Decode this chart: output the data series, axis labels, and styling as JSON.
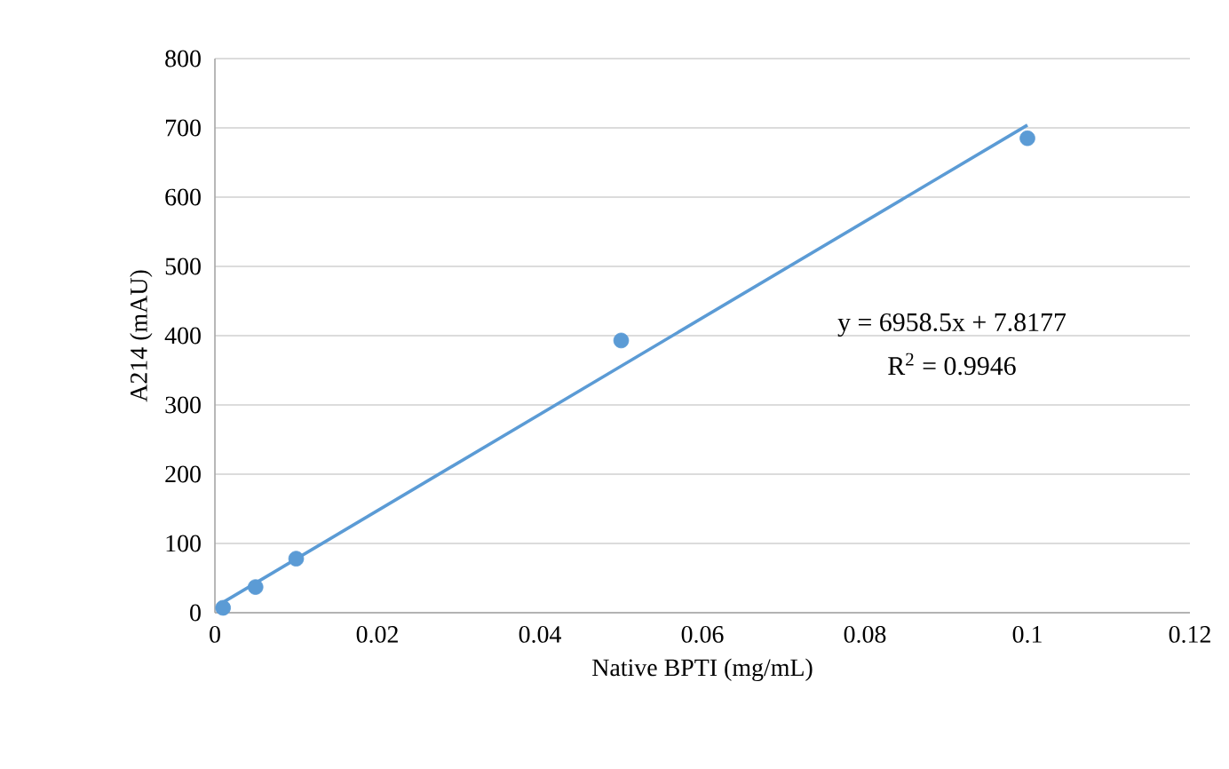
{
  "chart_data": {
    "type": "scatter",
    "xlabel": "Native BPTI (mg/mL)",
    "ylabel": "A214 (mAU)",
    "series": [
      {
        "color": "#5b9bd5",
        "x": [
          0.001,
          0.005,
          0.01,
          0.05,
          0.1
        ],
        "values": [
          7,
          37,
          78,
          393,
          685
        ]
      },
      {
        "type": "line",
        "color": "#5b9bd5",
        "x": [
          0.001,
          0.1
        ],
        "values": [
          15,
          704
        ]
      }
    ],
    "xlim": [
      0,
      0.12
    ],
    "xticks": [
      0,
      0.02,
      0.04,
      0.06,
      0.08,
      0.1,
      0.12
    ],
    "ylim": [
      0,
      800
    ],
    "yticks": [
      0,
      100,
      200,
      300,
      400,
      500,
      600,
      700,
      800
    ],
    "grid": "y",
    "annotations": [
      "y = 6958.5x + 7.8177",
      "R$^{2}$ = 0.9946"
    ]
  }
}
